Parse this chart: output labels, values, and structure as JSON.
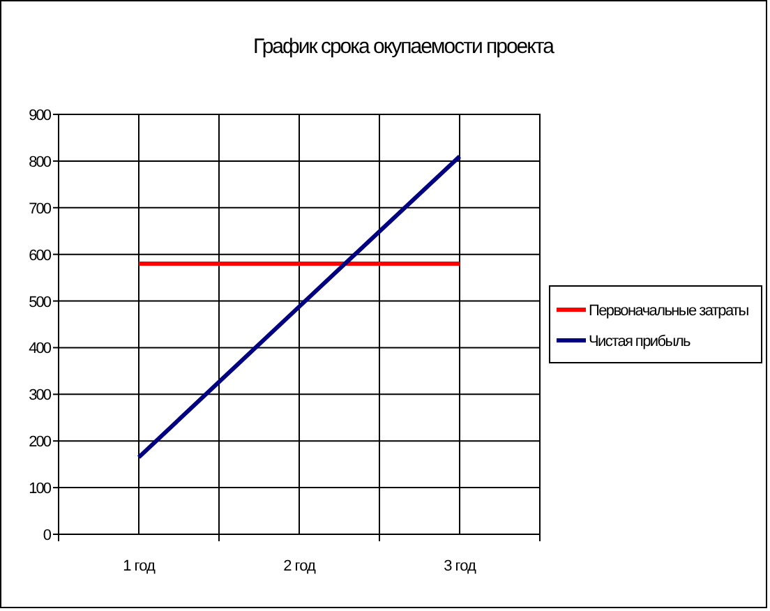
{
  "chart_data": {
    "type": "line",
    "title": "График срока окупаемости проекта",
    "categories": [
      "1 год",
      "2 год",
      "3 год"
    ],
    "series": [
      {
        "name": "Первоначальные затраты",
        "color": "#ff0000",
        "values": [
          580,
          580,
          580
        ]
      },
      {
        "name": "Чистая прибыль",
        "color": "#000080",
        "values": [
          165,
          488,
          810
        ]
      }
    ],
    "ylim": [
      0,
      900
    ],
    "yticks": [
      0,
      100,
      200,
      300,
      400,
      500,
      600,
      700,
      800,
      900
    ],
    "grid": true,
    "legend": "right",
    "marker": "none",
    "line_style": "solid"
  }
}
